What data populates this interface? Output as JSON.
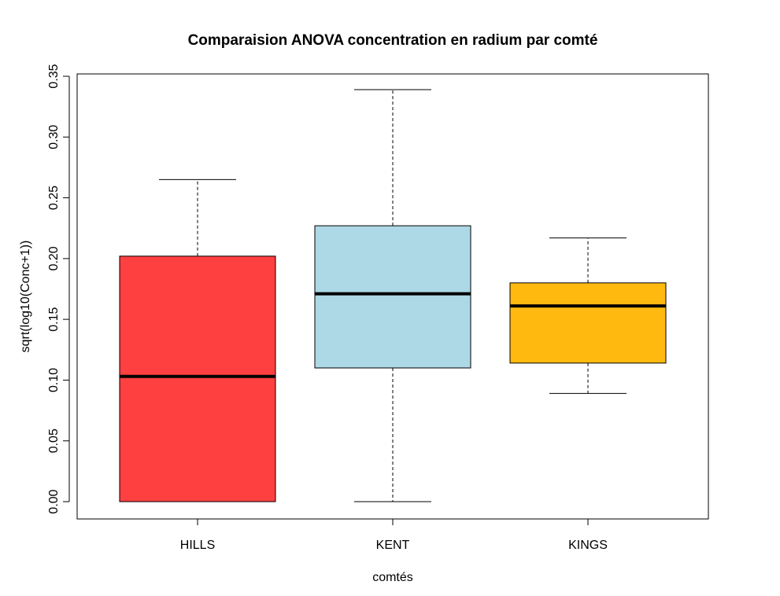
{
  "chart_data": {
    "type": "box",
    "title": "Comparaision ANOVA concentration en radium par comté",
    "xlabel": "comtés",
    "ylabel": "sqrt(log10(Conc+1))",
    "ylim": [
      0,
      0.35
    ],
    "yticks": [
      "0.00",
      "0.05",
      "0.10",
      "0.15",
      "0.20",
      "0.25",
      "0.30",
      "0.35"
    ],
    "categories": [
      "HILLS",
      "KENT",
      "KINGS"
    ],
    "boxes": [
      {
        "category": "HILLS",
        "min": 0.0,
        "q1": 0.0,
        "median": 0.103,
        "q3": 0.202,
        "max": 0.265,
        "color": "#ff4040"
      },
      {
        "category": "KENT",
        "min": 0.0,
        "q1": 0.11,
        "median": 0.171,
        "q3": 0.227,
        "max": 0.339,
        "color": "#add8e6"
      },
      {
        "category": "KINGS",
        "min": 0.089,
        "q1": 0.114,
        "median": 0.161,
        "q3": 0.18,
        "max": 0.217,
        "color": "#ffb90f"
      }
    ],
    "grid": false,
    "legend": "none"
  }
}
